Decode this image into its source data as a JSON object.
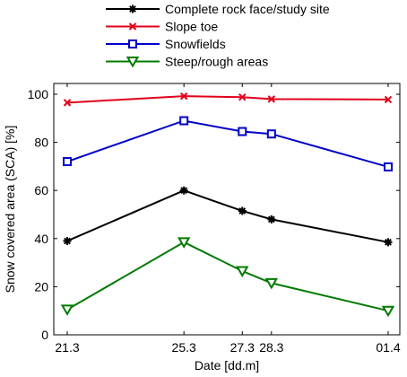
{
  "colors": {
    "black": "#000000",
    "red": "#e3001b",
    "blue": "#0000c8",
    "green": "#007a00"
  },
  "chart_data": {
    "type": "line",
    "title": "",
    "xlabel": "Date [dd.m]",
    "ylabel": "Snow covered area (SCA) [%]",
    "x_tick_labels": [
      "21.3",
      "25.3",
      "27.3",
      "28.3",
      "01.4"
    ],
    "x_day_offsets": [
      0,
      4,
      6,
      7,
      11
    ],
    "y_ticks": [
      "0",
      "20",
      "40",
      "60",
      "80",
      "100"
    ],
    "ylim": [
      0,
      100
    ],
    "grid": false,
    "legend_position": "top",
    "series": [
      {
        "name": "Complete rock face/study site",
        "color": "#000000",
        "marker": "asterisk",
        "values": [
          39,
          60,
          51.5,
          48,
          38.5
        ]
      },
      {
        "name": "Slope toe",
        "color": "#e3001b",
        "marker": "x",
        "values": [
          96.5,
          99.2,
          98.8,
          98,
          97.8
        ]
      },
      {
        "name": "Snowfields",
        "color": "#0000c8",
        "marker": "square",
        "values": [
          72,
          89,
          84.5,
          83.5,
          69.8
        ]
      },
      {
        "name": "Steep/rough areas",
        "color": "#007a00",
        "marker": "triangle-down",
        "values": [
          10.5,
          38.5,
          26.5,
          21.5,
          10
        ]
      }
    ]
  }
}
